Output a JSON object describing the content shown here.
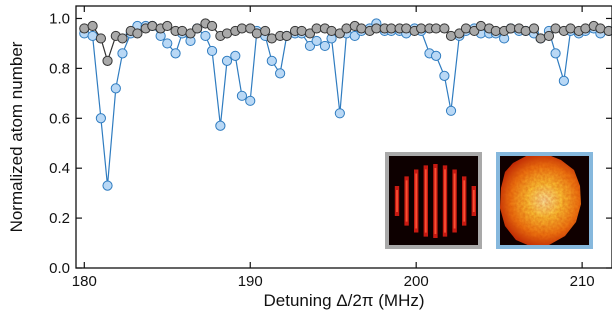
{
  "chart_data": {
    "type": "scatter",
    "xlabel": "Detuning Δ/2π (MHz)",
    "ylabel": "Normalized atom number",
    "xlim": [
      179.5,
      211.8
    ],
    "ylim": [
      0.0,
      1.05
    ],
    "xticks": [
      180,
      190,
      200,
      210
    ],
    "xtick_labels": [
      "180",
      "190",
      "200",
      "210"
    ],
    "yticks": [
      0.0,
      0.2,
      0.4,
      0.6,
      0.8,
      1.0
    ],
    "ytick_labels": [
      "0.0",
      "0.2",
      "0.4",
      "0.6",
      "0.8",
      "1.0"
    ],
    "grid": false,
    "legend": "none",
    "series": [
      {
        "color_fill": "#b9d8f5",
        "color_line": "#2f7cc0",
        "x": [
          180.0,
          180.5,
          181.0,
          181.4,
          181.9,
          182.3,
          182.8,
          183.2,
          183.7,
          184.1,
          184.6,
          185.0,
          185.5,
          185.9,
          186.4,
          186.8,
          187.3,
          187.7,
          188.2,
          188.6,
          189.1,
          189.5,
          190.0,
          190.4,
          190.9,
          191.3,
          191.8,
          192.2,
          192.7,
          193.1,
          193.6,
          194.0,
          194.5,
          194.9,
          195.4,
          195.8,
          196.3,
          196.7,
          197.2,
          197.6,
          198.1,
          198.5,
          199.0,
          199.4,
          199.9,
          200.3,
          200.8,
          201.2,
          201.7,
          202.1,
          202.6,
          203.0,
          203.5,
          203.9,
          204.4,
          204.8,
          205.3,
          205.7,
          206.2,
          206.6,
          207.1,
          207.5,
          208.0,
          208.4,
          208.9,
          209.3,
          209.8,
          210.2,
          210.7,
          211.1,
          211.6
        ],
        "y": [
          0.94,
          0.93,
          0.6,
          0.33,
          0.72,
          0.86,
          0.94,
          0.97,
          0.97,
          0.97,
          0.93,
          0.9,
          0.86,
          0.94,
          0.91,
          0.96,
          0.93,
          0.87,
          0.57,
          0.83,
          0.85,
          0.69,
          0.67,
          0.95,
          0.93,
          0.83,
          0.78,
          0.93,
          0.94,
          0.94,
          0.89,
          0.91,
          0.89,
          0.92,
          0.62,
          0.94,
          0.93,
          0.95,
          0.96,
          0.98,
          0.95,
          0.95,
          0.95,
          0.94,
          0.96,
          0.95,
          0.86,
          0.85,
          0.77,
          0.63,
          0.93,
          0.95,
          0.96,
          0.94,
          0.94,
          0.94,
          0.92,
          0.96,
          0.95,
          0.95,
          0.94,
          0.92,
          0.95,
          0.86,
          0.75,
          0.95,
          0.94,
          0.95,
          0.96,
          0.94,
          0.95
        ]
      },
      {
        "color_fill": "#a9a9a9",
        "color_line": "#333333",
        "x": [
          180.0,
          180.5,
          181.0,
          181.4,
          181.9,
          182.3,
          182.8,
          183.2,
          183.7,
          184.1,
          184.6,
          185.0,
          185.5,
          185.9,
          186.4,
          186.8,
          187.3,
          187.7,
          188.2,
          188.6,
          189.1,
          189.5,
          190.0,
          190.4,
          190.9,
          191.3,
          191.8,
          192.2,
          192.7,
          193.1,
          193.6,
          194.0,
          194.5,
          194.9,
          195.4,
          195.8,
          196.3,
          196.7,
          197.2,
          197.6,
          198.1,
          198.5,
          199.0,
          199.4,
          199.9,
          200.3,
          200.8,
          201.2,
          201.7,
          202.1,
          202.6,
          203.0,
          203.5,
          203.9,
          204.4,
          204.8,
          205.3,
          205.7,
          206.2,
          206.6,
          207.1,
          207.5,
          208.0,
          208.4,
          208.9,
          209.3,
          209.8,
          210.2,
          210.7,
          211.1,
          211.6
        ],
        "y": [
          0.96,
          0.97,
          0.92,
          0.83,
          0.93,
          0.92,
          0.95,
          0.94,
          0.96,
          0.97,
          0.96,
          0.97,
          0.95,
          0.95,
          0.94,
          0.96,
          0.98,
          0.97,
          0.93,
          0.94,
          0.95,
          0.96,
          0.96,
          0.94,
          0.95,
          0.92,
          0.93,
          0.93,
          0.95,
          0.95,
          0.94,
          0.96,
          0.96,
          0.95,
          0.94,
          0.96,
          0.97,
          0.96,
          0.95,
          0.96,
          0.96,
          0.96,
          0.96,
          0.96,
          0.95,
          0.96,
          0.96,
          0.96,
          0.96,
          0.93,
          0.94,
          0.96,
          0.95,
          0.97,
          0.96,
          0.95,
          0.95,
          0.96,
          0.96,
          0.95,
          0.96,
          0.92,
          0.93,
          0.96,
          0.95,
          0.96,
          0.95,
          0.96,
          0.97,
          0.96,
          0.95
        ]
      }
    ],
    "insets": [
      {
        "kind": "fluorescence-image-striped",
        "frame_color": "#a9a9a9"
      },
      {
        "kind": "fluorescence-image-uniform",
        "frame_color": "#86b8dd"
      }
    ]
  }
}
